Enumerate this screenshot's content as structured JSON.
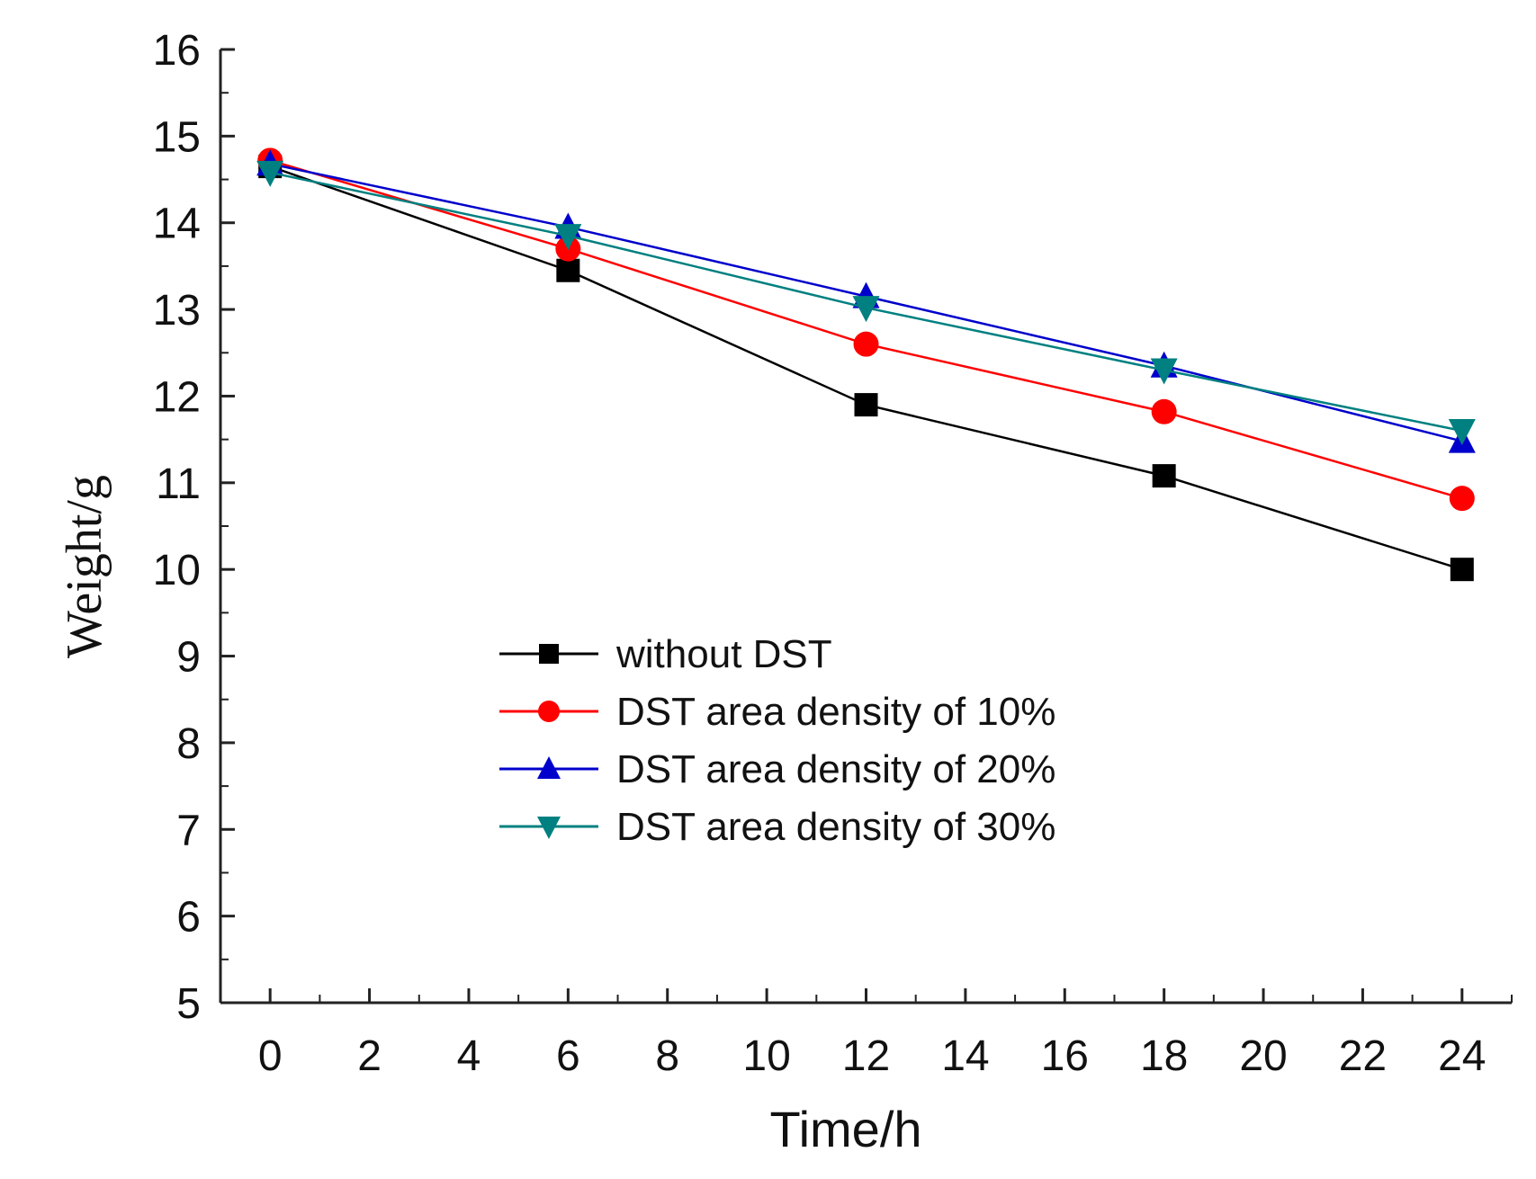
{
  "chart_data": {
    "type": "line",
    "title": "",
    "xlabel": "Time/h",
    "ylabel": "Weight/g",
    "xlim": [
      -1,
      25
    ],
    "ylim": [
      5,
      16
    ],
    "x_ticks": [
      0,
      2,
      4,
      6,
      8,
      10,
      12,
      14,
      16,
      18,
      20,
      22,
      24
    ],
    "y_ticks": [
      5,
      6,
      7,
      8,
      9,
      10,
      11,
      12,
      13,
      14,
      15,
      16
    ],
    "x": [
      0,
      6,
      12,
      18,
      24
    ],
    "grid": false,
    "legend_position": "center",
    "series": [
      {
        "name": "without DST",
        "values": [
          14.65,
          13.45,
          11.9,
          11.08,
          10.0
        ],
        "color": "#000000",
        "marker": "square"
      },
      {
        "name": "DST area density of 10%",
        "values": [
          14.72,
          13.7,
          12.6,
          11.82,
          10.82
        ],
        "color": "#ff0000",
        "marker": "circle"
      },
      {
        "name": "DST area density of 20%",
        "values": [
          14.68,
          13.95,
          13.15,
          12.35,
          11.48
        ],
        "color": "#0000cc",
        "marker": "triangle-up"
      },
      {
        "name": "DST area density of 30%",
        "values": [
          14.58,
          13.85,
          13.02,
          12.3,
          11.6
        ],
        "color": "#008080",
        "marker": "triangle-down"
      }
    ]
  }
}
